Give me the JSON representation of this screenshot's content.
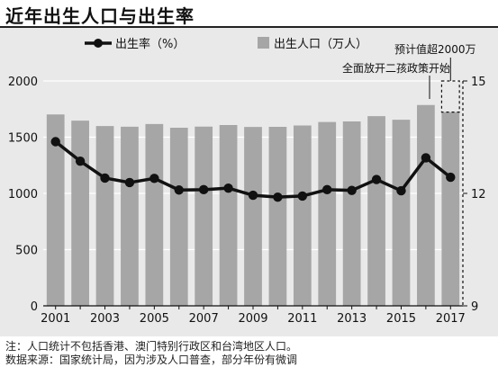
{
  "title": "近年出生人口与出生率",
  "legend": {
    "line_label": "出生率（%）",
    "bar_label": "出生人口（万人）"
  },
  "annotations": {
    "policy": "全面放开二孩政策开始",
    "forecast": "预计值超2000万"
  },
  "notes": [
    "注：人口统计不包括香港、澳门特别行政区和台湾地区人口。",
    "数据来源：国家统计局，因为涉及人口普查，部分年份有微调"
  ],
  "colors": {
    "bar": "#a6a6a6",
    "line": "#111111",
    "panel": "#e9e9e9",
    "grid": "#ffffff"
  },
  "chart_data": {
    "type": "bar",
    "title": "近年出生人口与出生率",
    "xlabel": "",
    "ylabel": "",
    "categories": [
      "2001",
      "2002",
      "2003",
      "2004",
      "2005",
      "2006",
      "2007",
      "2008",
      "2009",
      "2010",
      "2011",
      "2012",
      "2013",
      "2014",
      "2015",
      "2016",
      "2017"
    ],
    "x_tick_labels": [
      "2001",
      "2003",
      "2005",
      "2007",
      "2009",
      "2011",
      "2013",
      "2015",
      "2017"
    ],
    "y_left_ticks": [
      0,
      500,
      1000,
      1500,
      2000
    ],
    "y_right_ticks": [
      9,
      12,
      15
    ],
    "ylim": [
      0,
      2000
    ],
    "y2lim": [
      9,
      15
    ],
    "grid": true,
    "legend_position": "top",
    "series": [
      {
        "name": "出生人口（万人）",
        "kind": "bar",
        "axis": "left",
        "values": [
          1702,
          1647,
          1599,
          1593,
          1617,
          1584,
          1594,
          1608,
          1591,
          1592,
          1604,
          1635,
          1640,
          1687,
          1655,
          1786,
          1723
        ]
      },
      {
        "name": "出生率（%）",
        "kind": "line",
        "axis": "right",
        "values": [
          13.38,
          12.86,
          12.41,
          12.29,
          12.4,
          12.09,
          12.1,
          12.14,
          11.95,
          11.9,
          11.93,
          12.1,
          12.08,
          12.37,
          12.07,
          12.95,
          12.43
        ]
      }
    ],
    "forecast": {
      "category": "2017",
      "value": 2000
    }
  }
}
